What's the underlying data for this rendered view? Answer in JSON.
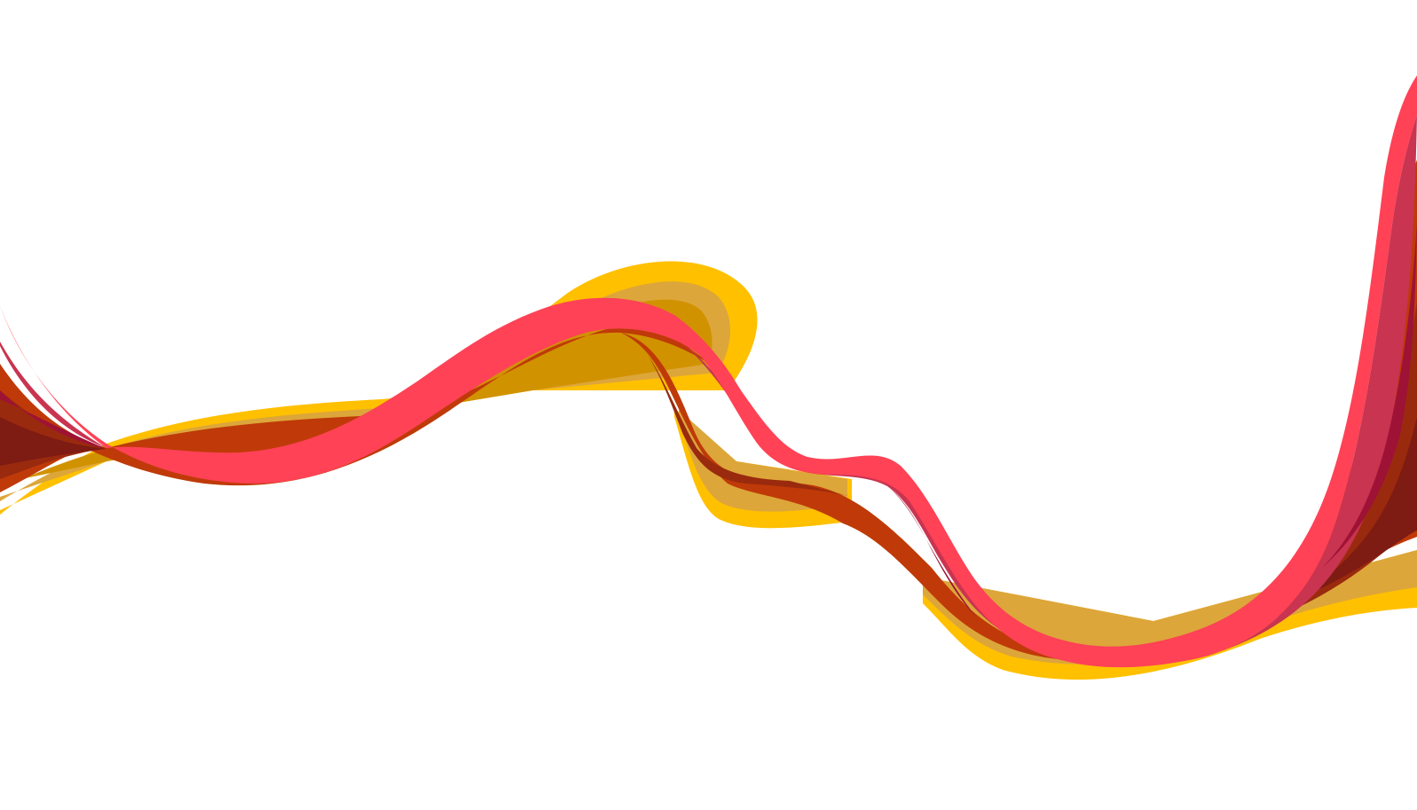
{
  "artwork": {
    "subject": "wave-ribbon",
    "background_color": "#ffffff",
    "palette": {
      "gold": "#FFC000",
      "tan": "#DDA63A",
      "ochre": "#D19200",
      "rust": "#BF3A08",
      "brown": "#9A2A0E",
      "maroon": "#7E1B12",
      "rose": "#C93450",
      "crimson": "#9E1236",
      "pink_red": "#FF4256"
    }
  }
}
